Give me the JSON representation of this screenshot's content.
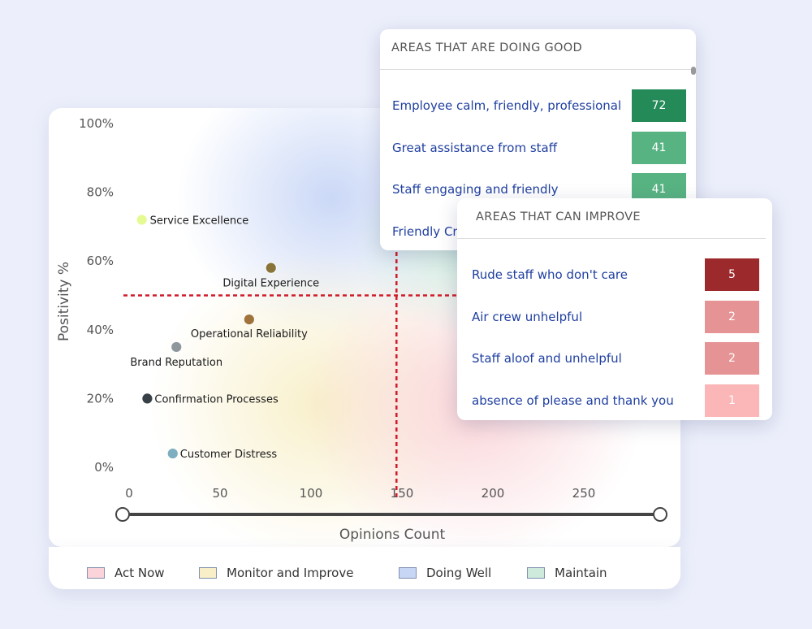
{
  "chart_data": {
    "type": "scatter",
    "xlabel": "Opinions Count",
    "ylabel": "Positivity %",
    "xlim": [
      0,
      300
    ],
    "ylim": [
      0,
      100
    ],
    "xticks": [
      "0",
      "50",
      "100",
      "150",
      "200",
      "250"
    ],
    "yticks": [
      "0%",
      "20%",
      "40%",
      "60%",
      "80%",
      "100%"
    ],
    "threshold_x": 147,
    "threshold_y": 50,
    "points": [
      {
        "label": "Service Excellence",
        "x": 7,
        "y": 72,
        "color": "#e6fa94"
      },
      {
        "label": "Digital Experience",
        "x": 78,
        "y": 58,
        "color": "#8a7338"
      },
      {
        "label": "Operational Reliability",
        "x": 66,
        "y": 43,
        "color": "#a0733a"
      },
      {
        "label": "Brand Reputation",
        "x": 26,
        "y": 35,
        "color": "#8e979c"
      },
      {
        "label": "Confirmation Processes",
        "x": 10,
        "y": 20,
        "color": "#384047"
      },
      {
        "label": "Customer Distress",
        "x": 24,
        "y": 4,
        "color": "#7eaec0"
      }
    ],
    "legend": [
      {
        "label": "Act Now",
        "color": "#fad4d8"
      },
      {
        "label": "Monitor and Improve",
        "color": "#f8efc8"
      },
      {
        "label": "Doing Well",
        "color": "#c8d6f6"
      },
      {
        "label": "Maintain",
        "color": "#cdeadc"
      }
    ],
    "range_slider": {
      "min": 0,
      "max": 300
    }
  },
  "good_panel": {
    "title": "AREAS THAT ARE DOING GOOD",
    "rows": [
      {
        "label": "Employee calm, friendly, professional",
        "value": "72",
        "color": "#238a58"
      },
      {
        "label": "Great assistance from staff",
        "value": "41",
        "color": "#58b382"
      },
      {
        "label": "Staff engaging and friendly",
        "value": "41",
        "color": "#58b382"
      },
      {
        "label": "Friendly Cr",
        "value": "",
        "color": "#58b382"
      }
    ]
  },
  "improve_panel": {
    "title": "AREAS THAT CAN IMPROVE",
    "rows": [
      {
        "label": "Rude staff who don't care",
        "value": "5",
        "color": "#9c2a2c"
      },
      {
        "label": "Air crew unhelpful",
        "value": "2",
        "color": "#e59395"
      },
      {
        "label": "Staff aloof and unhelpful",
        "value": "2",
        "color": "#e59395"
      },
      {
        "label": "absence of please and thank you",
        "value": "1",
        "color": "#fbb6b8"
      }
    ]
  }
}
